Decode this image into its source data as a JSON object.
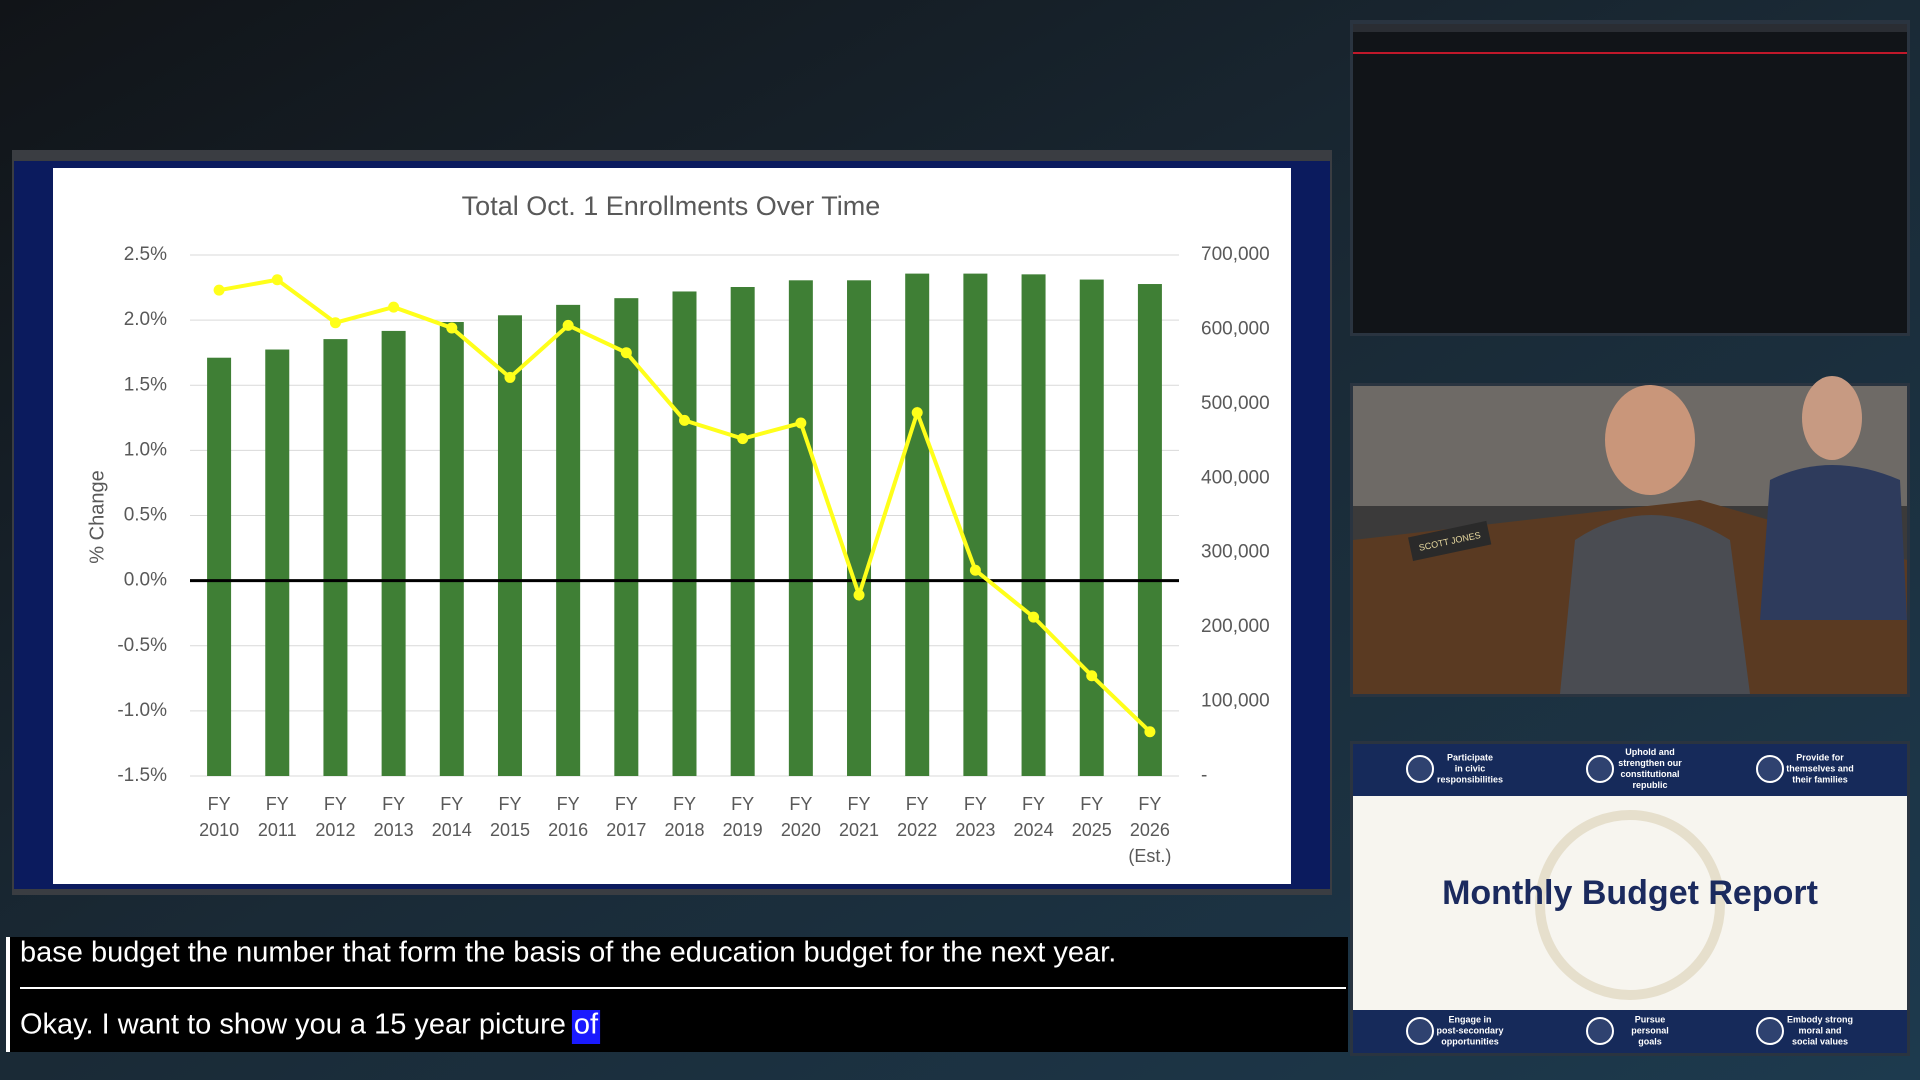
{
  "chart_data": {
    "type": "bar_line",
    "title": "Total Oct. 1 Enrollments Over Time",
    "ylabel": "% Change",
    "categories": [
      [
        "FY",
        "2010"
      ],
      [
        "FY",
        "2011"
      ],
      [
        "FY",
        "2012"
      ],
      [
        "FY",
        "2013"
      ],
      [
        "FY",
        "2014"
      ],
      [
        "FY",
        "2015"
      ],
      [
        "FY",
        "2016"
      ],
      [
        "FY",
        "2017"
      ],
      [
        "FY",
        "2018"
      ],
      [
        "FY",
        "2019"
      ],
      [
        "FY",
        "2020"
      ],
      [
        "FY",
        "2021"
      ],
      [
        "FY",
        "2022"
      ],
      [
        "FY",
        "2023"
      ],
      [
        "FY",
        "2024"
      ],
      [
        "FY",
        "2025"
      ],
      [
        "FY",
        "2026",
        "(Est.)"
      ]
    ],
    "series": [
      {
        "type": "bar",
        "axis": "y2",
        "color": "#3f7f35",
        "values": [
          562000,
          573000,
          587000,
          598000,
          610000,
          619000,
          633000,
          642000,
          651000,
          657000,
          666000,
          666000,
          675000,
          675000,
          674000,
          667000,
          661000
        ]
      },
      {
        "type": "line",
        "axis": "y",
        "color": "#ffff1a",
        "values": [
          2.23,
          2.31,
          1.98,
          2.1,
          1.94,
          1.56,
          1.96,
          1.75,
          1.23,
          1.09,
          1.21,
          -0.11,
          1.29,
          0.08,
          -0.28,
          -0.73,
          -1.16
        ]
      }
    ],
    "ylim": [
      -1.5,
      2.5
    ],
    "yticks": [
      {
        "value": 2.5,
        "label": "2.5%"
      },
      {
        "value": 2.0,
        "label": "2.0%"
      },
      {
        "value": 1.5,
        "label": "1.5%"
      },
      {
        "value": 1.0,
        "label": "1.0%"
      },
      {
        "value": 0.5,
        "label": "0.5%"
      },
      {
        "value": 0.0,
        "label": "0.0%"
      },
      {
        "value": -0.5,
        "label": "-0.5%"
      },
      {
        "value": -1.0,
        "label": "-1.0%"
      },
      {
        "value": -1.5,
        "label": "-1.5%"
      }
    ],
    "y2lim": [
      0,
      700000
    ],
    "y2ticks": [
      {
        "value": 700000,
        "label": "700,000"
      },
      {
        "value": 600000,
        "label": "600,000"
      },
      {
        "value": 500000,
        "label": "500,000"
      },
      {
        "value": 400000,
        "label": "400,000"
      },
      {
        "value": 300000,
        "label": "300,000"
      },
      {
        "value": 200000,
        "label": "200,000"
      },
      {
        "value": 100000,
        "label": "100,000"
      },
      {
        "value": 0,
        "label": "-"
      }
    ],
    "grid": true,
    "zero_line": 0
  },
  "captions": {
    "line1": "base budget the number that form the basis of the education budget for the next year.",
    "line2": "Okay. I want to show you a 15 year picture",
    "highlight": "of"
  },
  "video": {
    "nameplate": "SCOTT JONES"
  },
  "slide": {
    "title": "Monthly Budget Report",
    "top_goals": [
      [
        "Participate",
        "in civic",
        "responsibilities"
      ],
      [
        "Uphold and",
        "strengthen our",
        "constitutional",
        "republic"
      ],
      [
        "Provide for",
        "themselves and",
        "their families"
      ]
    ],
    "bottom_goals": [
      [
        "Engage in",
        "post-secondary",
        "opportunities"
      ],
      [
        "Pursue",
        "personal",
        "goals"
      ],
      [
        "Embody strong",
        "moral and",
        "social values"
      ]
    ]
  }
}
